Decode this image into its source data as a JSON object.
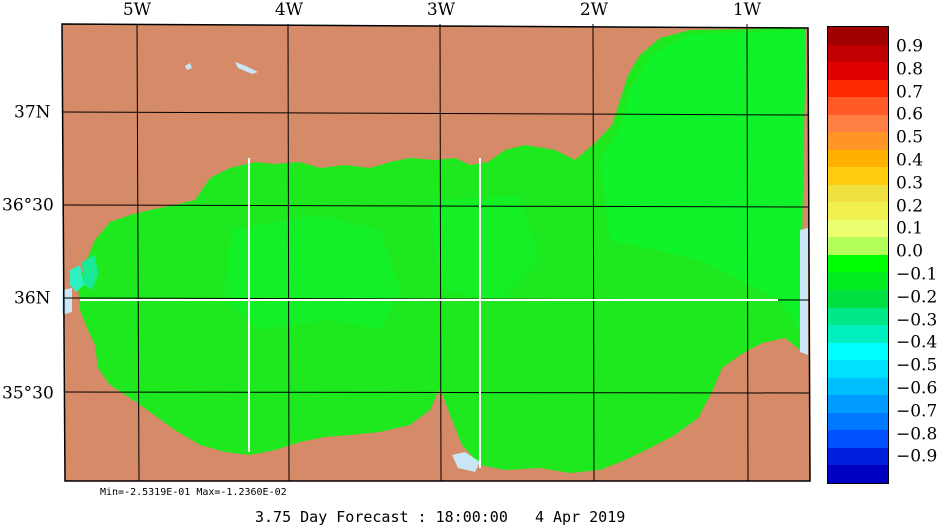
{
  "map": {
    "lon_labels": [
      "5W",
      "4W",
      "3W",
      "2W",
      "1W"
    ],
    "lat_labels": [
      "37N",
      "36°30",
      "36N",
      "35°30"
    ],
    "colors": {
      "land": "#d58a68",
      "sea_main": "#1ee81e",
      "sea_bright": "#00ff3a",
      "sea_teal": "#19e896",
      "water_light": "#c8e6f5",
      "grid": "#000000",
      "transect": "#ffffff"
    }
  },
  "colorbar": {
    "colors": [
      "#a00000",
      "#c00000",
      "#e00000",
      "#ff2a00",
      "#ff5a28",
      "#ff7f44",
      "#ff9626",
      "#ffb000",
      "#ffcc10",
      "#f0e040",
      "#f0f050",
      "#ecff70",
      "#b4ff5a",
      "#00ff00",
      "#00ec20",
      "#00e040",
      "#00e888",
      "#00f0c0",
      "#00ffff",
      "#00e0ff",
      "#00bfff",
      "#009bff",
      "#0078ff",
      "#0050ff",
      "#0020e0",
      "#0000c0"
    ],
    "labels": [
      "0.9",
      "0.8",
      "0.7",
      "0.6",
      "0.5",
      "0.4",
      "0.3",
      "0.2",
      "0.1",
      "0.0",
      "−0.1",
      "−0.2",
      "−0.3",
      "−0.4",
      "−0.5",
      "−0.6",
      "−0.7",
      "−0.8",
      "−0.9"
    ]
  },
  "stats": {
    "text": "Min=-2.5319E-01  Max=-1.2360E-02"
  },
  "footer": {
    "text": "3.75 Day Forecast : 18:00:00   4 Apr 2019"
  }
}
